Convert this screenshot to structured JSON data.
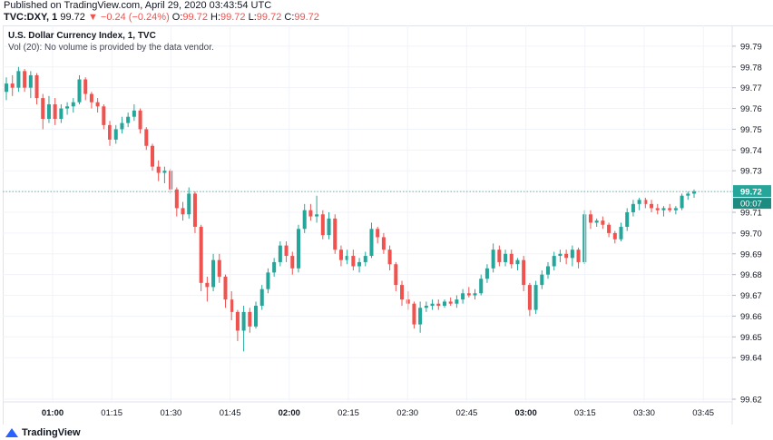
{
  "header": {
    "published": "Published on TradingView.com, April 29, 2020 03:43:54 UTC",
    "symbol": "TVC:DXY, 1",
    "last": "99.72",
    "change": "▼ −0.24 (−0.24%)",
    "o_label": "O:",
    "o_value": "99.72",
    "h_label": "H:",
    "h_value": "99.72",
    "l_label": "L:",
    "l_value": "99.72",
    "c_label": "C:",
    "c_value": "99.72"
  },
  "legend": {
    "title": "U.S. Dollar Currency Index, 1, TVC",
    "volume_note": "Vol (20): No volume is provided by the data vendor."
  },
  "footer": {
    "brand": "TradingView"
  },
  "colors": {
    "up": "#26a69a",
    "down": "#ef5350",
    "grid": "#f0f3fa",
    "axis_text": "#131722",
    "price_line": "#26a69a"
  },
  "chart_data": {
    "type": "candlestick",
    "title": "U.S. Dollar Currency Index, 1, TVC",
    "ylim": [
      99.62,
      99.8
    ],
    "y_ticks": [
      "99.79",
      "99.78",
      "99.77",
      "99.76",
      "99.75",
      "99.74",
      "99.73",
      "99.72",
      "99.71",
      "99.70",
      "99.69",
      "99.68",
      "99.67",
      "99.66",
      "99.65",
      "99.64",
      "99.62"
    ],
    "x_ticks": [
      "01:00",
      "01:15",
      "01:30",
      "01:45",
      "02:00",
      "02:15",
      "02:30",
      "02:45",
      "03:00",
      "03:15",
      "03:30",
      "03:45"
    ],
    "last_price_label": "99.72",
    "countdown_label": "00:07",
    "last_price": 99.72,
    "grid": true,
    "candles": [
      [
        99.768,
        99.775,
        99.764,
        99.772
      ],
      [
        99.772,
        99.776,
        99.766,
        99.77
      ],
      [
        99.77,
        99.78,
        99.768,
        99.778
      ],
      [
        99.778,
        99.779,
        99.768,
        99.77
      ],
      [
        99.77,
        99.778,
        99.765,
        99.776
      ],
      [
        99.776,
        99.777,
        99.762,
        99.765
      ],
      [
        99.765,
        99.767,
        99.75,
        99.755
      ],
      [
        99.755,
        99.766,
        99.753,
        99.762
      ],
      [
        99.762,
        99.765,
        99.752,
        99.755
      ],
      [
        99.755,
        99.762,
        99.753,
        99.76
      ],
      [
        99.76,
        99.763,
        99.757,
        99.761
      ],
      [
        99.761,
        99.765,
        99.758,
        99.763
      ],
      [
        99.763,
        99.776,
        99.762,
        99.774
      ],
      [
        99.774,
        99.775,
        99.764,
        99.767
      ],
      [
        99.767,
        99.768,
        99.76,
        99.763
      ],
      [
        99.763,
        99.765,
        99.758,
        99.761
      ],
      [
        99.761,
        99.762,
        99.75,
        99.752
      ],
      [
        99.752,
        99.754,
        99.742,
        99.745
      ],
      [
        99.745,
        99.752,
        99.743,
        99.75
      ],
      [
        99.75,
        99.756,
        99.748,
        99.753
      ],
      [
        99.753,
        99.758,
        99.751,
        99.756
      ],
      [
        99.756,
        99.762,
        99.754,
        99.759
      ],
      [
        99.759,
        99.76,
        99.748,
        99.75
      ],
      [
        99.75,
        99.751,
        99.74,
        99.742
      ],
      [
        99.742,
        99.743,
        99.73,
        99.732
      ],
      [
        99.732,
        99.735,
        99.725,
        99.729
      ],
      [
        99.729,
        99.732,
        99.724,
        99.73
      ],
      [
        99.73,
        99.731,
        99.719,
        99.721
      ],
      [
        99.721,
        99.722,
        99.708,
        99.712
      ],
      [
        99.712,
        99.715,
        99.706,
        99.709
      ],
      [
        99.709,
        99.722,
        99.707,
        99.719
      ],
      [
        99.719,
        99.72,
        99.7,
        99.703
      ],
      [
        99.703,
        99.704,
        99.672,
        99.676
      ],
      [
        99.676,
        99.679,
        99.667,
        99.674
      ],
      [
        99.674,
        99.69,
        99.672,
        99.687
      ],
      [
        99.687,
        99.69,
        99.676,
        99.679
      ],
      [
        99.679,
        99.68,
        99.664,
        99.668
      ],
      [
        99.668,
        99.672,
        99.658,
        99.662
      ],
      [
        99.662,
        99.663,
        99.648,
        99.653
      ],
      [
        99.653,
        99.665,
        99.643,
        99.662
      ],
      [
        99.662,
        99.664,
        99.652,
        99.655
      ],
      [
        99.655,
        99.667,
        99.654,
        99.665
      ],
      [
        99.665,
        99.675,
        99.663,
        99.673
      ],
      [
        99.673,
        99.683,
        99.671,
        99.681
      ],
      [
        99.681,
        99.688,
        99.679,
        99.686
      ],
      [
        99.686,
        99.696,
        99.684,
        99.694
      ],
      [
        99.694,
        99.696,
        99.686,
        99.689
      ],
      [
        99.689,
        99.691,
        99.68,
        99.683
      ],
      [
        99.683,
        99.704,
        99.681,
        99.702
      ],
      [
        99.702,
        99.714,
        99.7,
        99.711
      ],
      [
        99.711,
        99.714,
        99.706,
        99.708
      ],
      [
        99.708,
        99.718,
        99.705,
        99.709
      ],
      [
        99.709,
        99.711,
        99.697,
        99.699
      ],
      [
        99.699,
        99.71,
        99.697,
        99.707
      ],
      [
        99.707,
        99.709,
        99.69,
        99.692
      ],
      [
        99.692,
        99.694,
        99.684,
        99.687
      ],
      [
        99.687,
        99.692,
        99.685,
        99.689
      ],
      [
        99.689,
        99.692,
        99.682,
        99.684
      ],
      [
        99.684,
        99.688,
        99.681,
        99.686
      ],
      [
        99.686,
        99.691,
        99.684,
        99.689
      ],
      [
        99.689,
        99.705,
        99.688,
        99.702
      ],
      [
        99.702,
        99.703,
        99.695,
        99.698
      ],
      [
        99.698,
        99.7,
        99.69,
        99.692
      ],
      [
        99.692,
        99.694,
        99.682,
        99.685
      ],
      [
        99.685,
        99.686,
        99.672,
        99.675
      ],
      [
        99.675,
        99.677,
        99.665,
        99.668
      ],
      [
        99.668,
        99.672,
        99.663,
        99.666
      ],
      [
        99.666,
        99.667,
        99.654,
        99.656
      ],
      [
        99.656,
        99.667,
        99.652,
        99.664
      ],
      [
        99.664,
        99.667,
        99.662,
        99.665
      ],
      [
        99.665,
        99.668,
        99.663,
        99.666
      ],
      [
        99.666,
        99.668,
        99.663,
        99.665
      ],
      [
        99.665,
        99.668,
        99.664,
        99.667
      ],
      [
        99.667,
        99.669,
        99.665,
        99.666
      ],
      [
        99.666,
        99.67,
        99.664,
        99.668
      ],
      [
        99.668,
        99.673,
        99.666,
        99.671
      ],
      [
        99.671,
        99.674,
        99.669,
        99.67
      ],
      [
        99.67,
        99.673,
        99.668,
        99.671
      ],
      [
        99.671,
        99.68,
        99.67,
        99.678
      ],
      [
        99.678,
        99.685,
        99.676,
        99.683
      ],
      [
        99.683,
        99.695,
        99.681,
        99.692
      ],
      [
        99.692,
        99.694,
        99.684,
        99.686
      ],
      [
        99.686,
        99.692,
        99.684,
        99.69
      ],
      [
        99.69,
        99.692,
        99.683,
        99.685
      ],
      [
        99.685,
        99.688,
        99.682,
        99.687
      ],
      [
        99.687,
        99.689,
        99.672,
        99.675
      ],
      [
        99.675,
        99.676,
        99.66,
        99.663
      ],
      [
        99.663,
        99.677,
        99.661,
        99.675
      ],
      [
        99.675,
        99.682,
        99.673,
        99.68
      ],
      [
        99.68,
        99.686,
        99.678,
        99.684
      ],
      [
        99.684,
        99.691,
        99.682,
        99.689
      ],
      [
        99.689,
        99.692,
        99.686,
        99.69
      ],
      [
        99.69,
        99.692,
        99.685,
        99.688
      ],
      [
        99.688,
        99.694,
        99.684,
        99.692
      ],
      [
        99.692,
        99.693,
        99.683,
        99.686
      ],
      [
        99.686,
        99.711,
        99.685,
        99.709
      ],
      [
        99.709,
        99.711,
        99.702,
        99.705
      ],
      [
        99.705,
        99.707,
        99.703,
        99.706
      ],
      [
        99.706,
        99.708,
        99.702,
        99.704
      ],
      [
        99.704,
        99.705,
        99.698,
        99.7
      ],
      [
        99.7,
        99.701,
        99.695,
        99.697
      ],
      [
        99.697,
        99.705,
        99.696,
        99.703
      ],
      [
        99.703,
        99.712,
        99.701,
        99.71
      ],
      [
        99.71,
        99.716,
        99.708,
        99.714
      ],
      [
        99.714,
        99.717,
        99.711,
        99.716
      ],
      [
        99.716,
        99.717,
        99.712,
        99.714
      ],
      [
        99.714,
        99.716,
        99.71,
        99.712
      ],
      [
        99.712,
        99.714,
        99.709,
        99.711
      ],
      [
        99.711,
        99.713,
        99.708,
        99.712
      ],
      [
        99.712,
        99.714,
        99.71,
        99.711
      ],
      [
        99.711,
        99.713,
        99.709,
        99.712
      ],
      [
        99.712,
        99.719,
        99.711,
        99.718
      ],
      [
        99.718,
        99.72,
        99.716,
        99.719
      ],
      [
        99.719,
        99.721,
        99.717,
        99.72
      ]
    ]
  }
}
